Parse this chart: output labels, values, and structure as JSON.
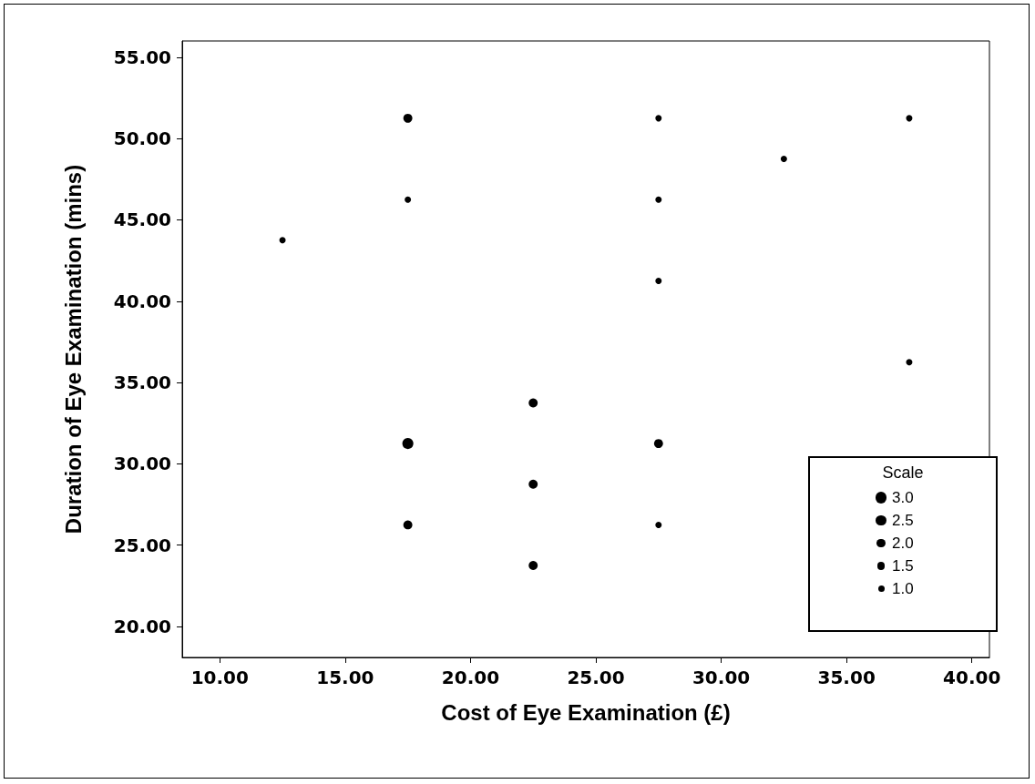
{
  "chart_data": {
    "type": "bubble",
    "xlabel": "Cost of Eye Examination (£)",
    "ylabel": "Duration of Eye Examination (mins)",
    "legend_title": "Scale",
    "grid": false,
    "marker": "circle",
    "xlim": [
      8.5,
      40.7
    ],
    "ylim": [
      18.1,
      56.0
    ],
    "xticks": [
      {
        "value": 10,
        "label": "10.00"
      },
      {
        "value": 15,
        "label": "15.00"
      },
      {
        "value": 20,
        "label": "20.00"
      },
      {
        "value": 25,
        "label": "25.00"
      },
      {
        "value": 30,
        "label": "30.00"
      },
      {
        "value": 35,
        "label": "35.00"
      },
      {
        "value": 40,
        "label": "40.00"
      }
    ],
    "yticks": [
      {
        "value": 20,
        "label": "20.00"
      },
      {
        "value": 25,
        "label": "25.00"
      },
      {
        "value": 30,
        "label": "30.00"
      },
      {
        "value": 35,
        "label": "35.00"
      },
      {
        "value": 40,
        "label": "40.00"
      },
      {
        "value": 45,
        "label": "45.00"
      },
      {
        "value": 50,
        "label": "50.00"
      },
      {
        "value": 55,
        "label": "55.00"
      }
    ],
    "size_legend": [
      {
        "value": 3,
        "label": "3.0"
      },
      {
        "value": 2.5,
        "label": "2.5"
      },
      {
        "value": 2,
        "label": "2.0"
      },
      {
        "value": 1.5,
        "label": "1.5"
      },
      {
        "value": 1,
        "label": "1.0"
      }
    ],
    "series": [
      {
        "color": "#000000",
        "x": [
          12.5,
          17.5,
          17.5,
          17.5,
          17.5,
          22.5,
          22.5,
          22.5,
          27.5,
          27.5,
          27.5,
          27.5,
          27.5,
          32.5,
          37.5,
          37.5
        ],
        "values": [
          43.75,
          51.25,
          46.25,
          31.25,
          26.25,
          33.75,
          28.75,
          23.75,
          51.25,
          46.25,
          41.25,
          31.25,
          26.25,
          48.75,
          51.25,
          36.25
        ],
        "sizes": [
          1,
          2,
          1,
          3,
          2,
          2,
          2,
          2,
          1,
          1,
          1,
          2,
          1,
          1,
          1,
          1
        ]
      }
    ]
  }
}
